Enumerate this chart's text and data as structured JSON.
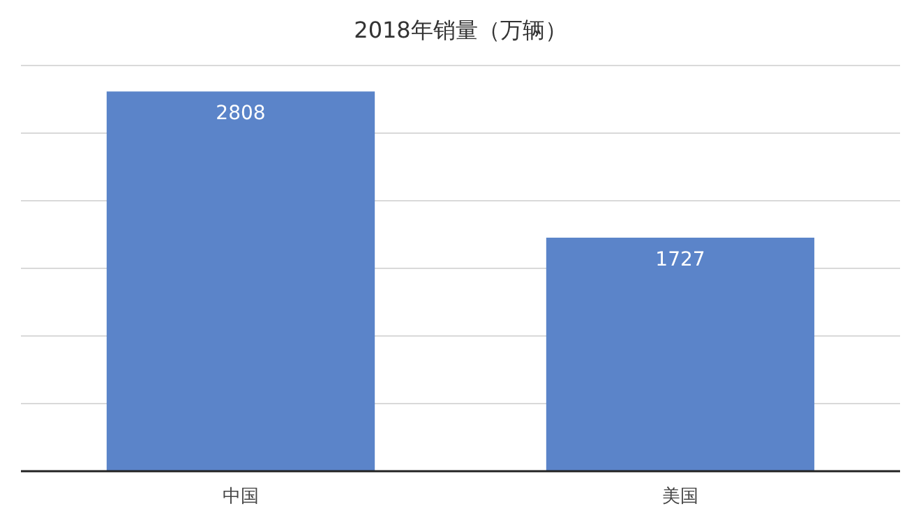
{
  "chart_data": {
    "type": "bar",
    "title": "2018年销量（万辆）",
    "categories": [
      "中国",
      "美国"
    ],
    "values": [
      2808,
      1727
    ],
    "color": "#5b84c9",
    "ylim": [
      0,
      3000
    ],
    "yticks": [
      {
        "value": 0,
        "label": null
      },
      {
        "value": 500,
        "label": null
      },
      {
        "value": 1000,
        "label": null
      },
      {
        "value": 1500,
        "label": null
      },
      {
        "value": 2000,
        "label": null
      },
      {
        "value": 2500,
        "label": null
      },
      {
        "value": 3000,
        "label": null
      }
    ],
    "tick_labels": "x",
    "grid": "y",
    "data_labels": true
  }
}
